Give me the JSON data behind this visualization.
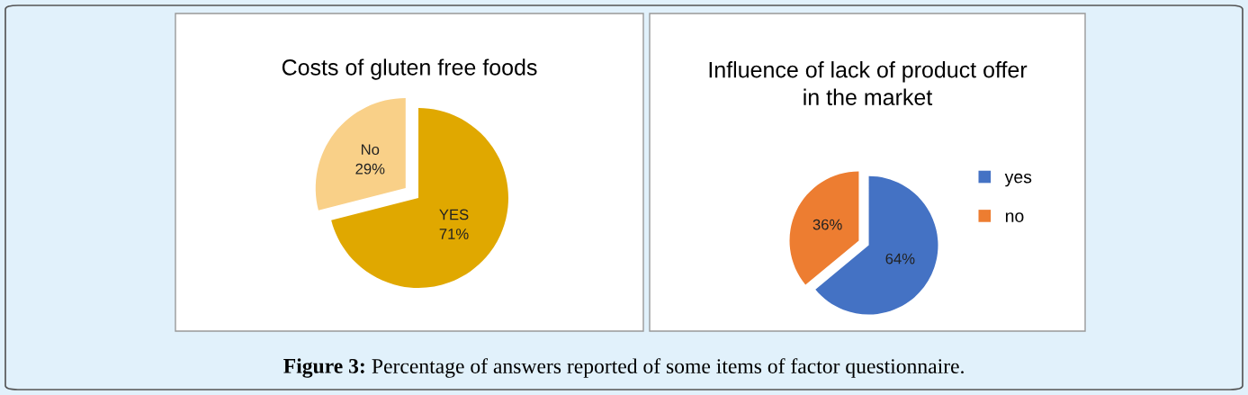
{
  "chart_data": [
    {
      "type": "pie",
      "title": "Costs of gluten free foods",
      "categories": [
        "YES",
        "No"
      ],
      "values": [
        71,
        29
      ],
      "colors": [
        "#e0a800",
        "#f9d088"
      ],
      "value_labels": [
        "71%",
        "29%"
      ],
      "legend": false,
      "annotations": [
        "Figure 3:",
        "Percentage of answers reported of some items of factor questionnaire."
      ]
    },
    {
      "type": "pie",
      "title": "Influence of lack of product offer\nin the market",
      "categories": [
        "yes",
        "no"
      ],
      "values": [
        64,
        36
      ],
      "colors": [
        "#4472c4",
        "#ed7d31"
      ],
      "value_labels": [
        "64%",
        "36%"
      ],
      "legend": "right"
    }
  ]
}
